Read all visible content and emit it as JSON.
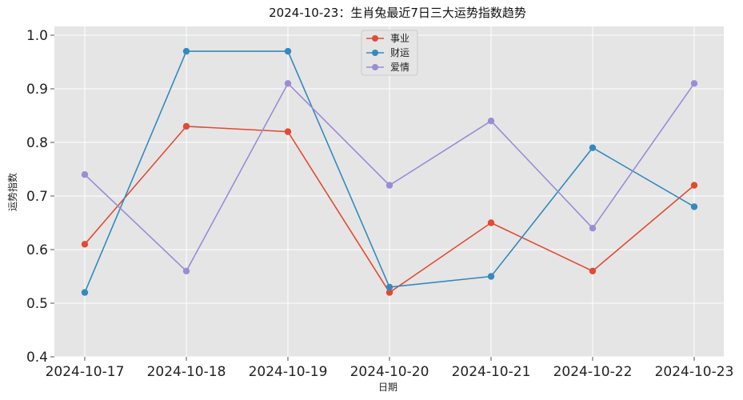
{
  "chart_data": {
    "type": "line",
    "title": "2024-10-23：生肖兔最近7日三大运势指数趋势",
    "xlabel": "日期",
    "ylabel": "运势指数",
    "categories": [
      "2024-10-17",
      "2024-10-18",
      "2024-10-19",
      "2024-10-20",
      "2024-10-21",
      "2024-10-22",
      "2024-10-23"
    ],
    "ylim": [
      0.4,
      1.0
    ],
    "yticks": [
      "0.4",
      "0.5",
      "0.6",
      "0.7",
      "0.8",
      "0.9",
      "1.0"
    ],
    "grid": true,
    "legend_position": "top-center",
    "series": [
      {
        "name": "事业",
        "color": "#E24A33",
        "values": [
          0.61,
          0.83,
          0.82,
          0.52,
          0.65,
          0.56,
          0.72
        ]
      },
      {
        "name": "财运",
        "color": "#348ABD",
        "values": [
          0.52,
          0.97,
          0.97,
          0.53,
          0.55,
          0.79,
          0.68
        ]
      },
      {
        "name": "爱情",
        "color": "#988ED5",
        "values": [
          0.74,
          0.56,
          0.91,
          0.72,
          0.84,
          0.64,
          0.91
        ]
      }
    ]
  }
}
